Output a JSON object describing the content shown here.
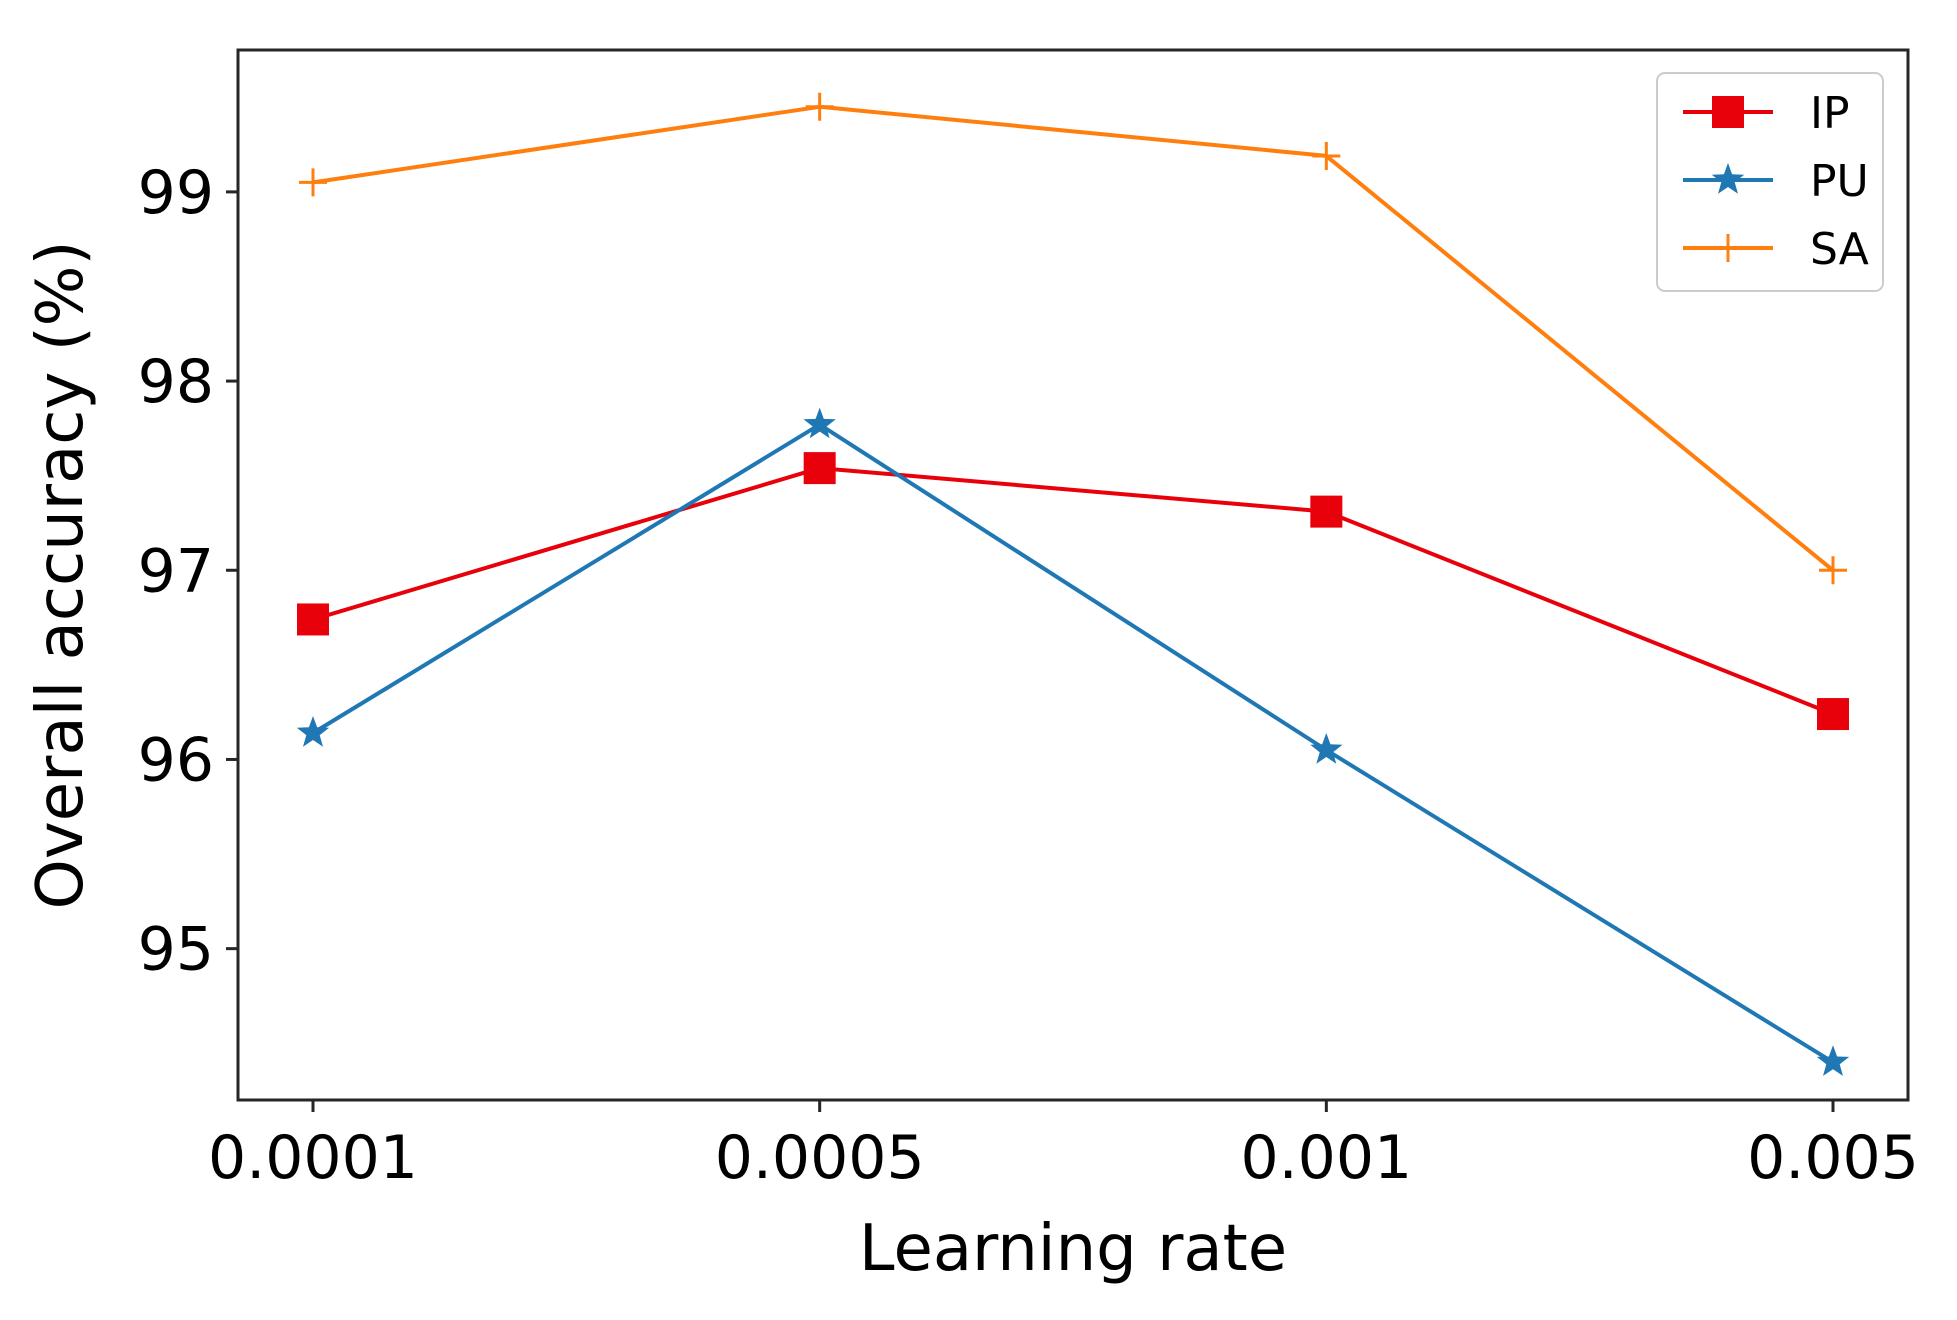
{
  "chart_data": {
    "type": "line",
    "title": "",
    "xlabel": "Learning rate",
    "ylabel": "Overall accuracy (%)",
    "categories": [
      "0.0001",
      "0.0005",
      "0.001",
      "0.005"
    ],
    "yticks": [
      "95",
      "96",
      "97",
      "98",
      "99"
    ],
    "ylim": [
      94.2,
      99.75
    ],
    "grid": false,
    "legend_position": "top-right",
    "series": [
      {
        "name": "IP",
        "color": "#e8000b",
        "marker": "square",
        "values": [
          96.74,
          97.54,
          97.31,
          96.24
        ]
      },
      {
        "name": "PU",
        "color": "#1f77b4",
        "marker": "star",
        "values": [
          96.14,
          97.77,
          96.05,
          94.4
        ]
      },
      {
        "name": "SA",
        "color": "#ff7f0e",
        "marker": "plus",
        "values": [
          99.05,
          99.45,
          99.19,
          97.0
        ]
      }
    ]
  }
}
